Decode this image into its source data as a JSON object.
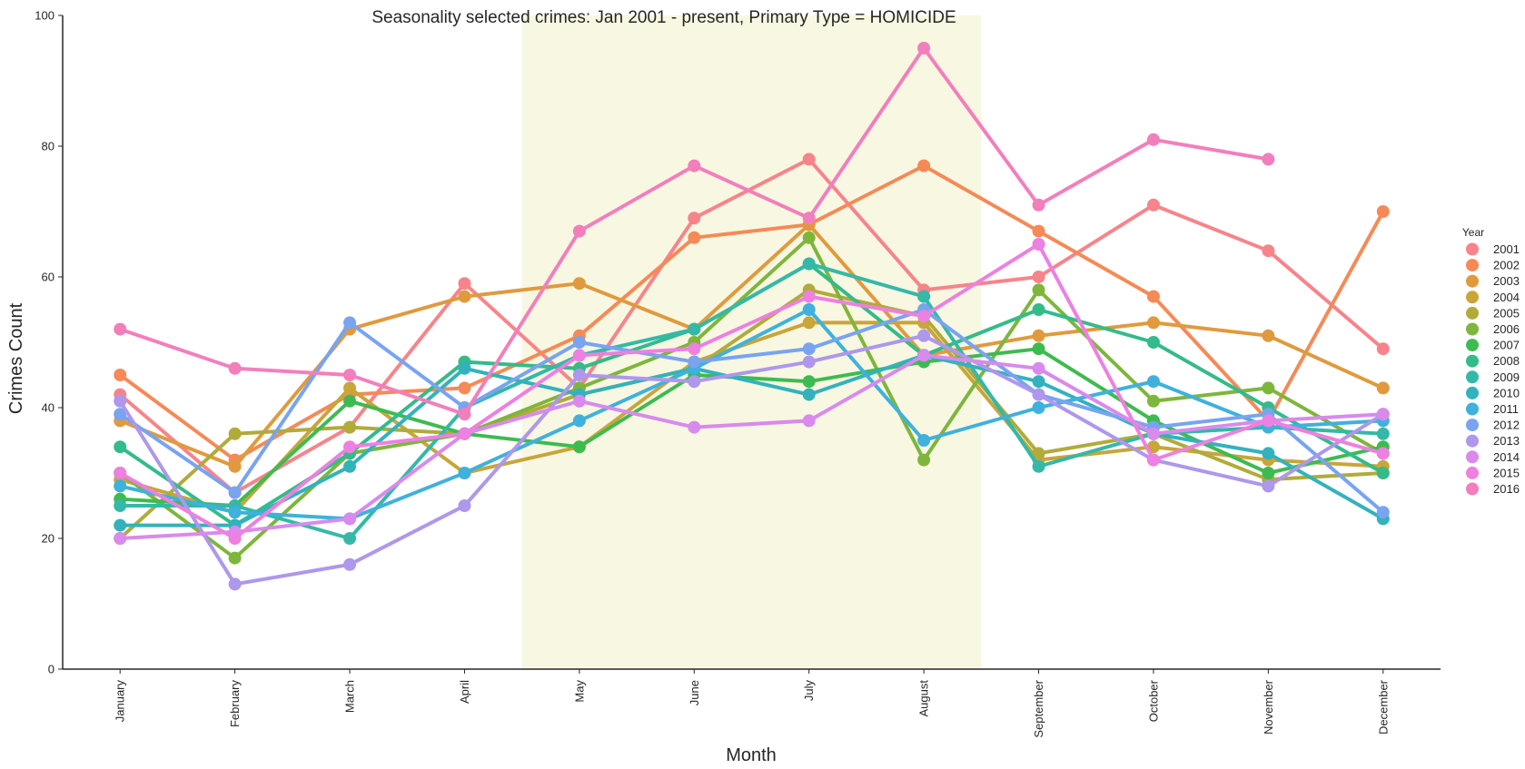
{
  "chart_data": {
    "type": "line",
    "title": "Seasonality selected crimes: Jan 2001 - present, Primary Type = HOMICIDE",
    "xlabel": "Month",
    "ylabel": "Crimes Count",
    "categories": [
      "January",
      "February",
      "March",
      "April",
      "May",
      "June",
      "July",
      "August",
      "September",
      "October",
      "November",
      "December"
    ],
    "ylim": [
      0,
      100
    ],
    "yticks": [
      0,
      20,
      40,
      60,
      80,
      100
    ],
    "grid": false,
    "highlight_span": {
      "from": "May",
      "to": "August",
      "color": "#f8f7e2"
    },
    "legend": {
      "title": "Year",
      "placement": "right"
    },
    "series": [
      {
        "name": "2001",
        "color": "#f7848a",
        "values": [
          42,
          27,
          37,
          59,
          43,
          69,
          78,
          58,
          60,
          71,
          64,
          49
        ]
      },
      {
        "name": "2002",
        "color": "#f58a56",
        "values": [
          45,
          32,
          42,
          43,
          51,
          66,
          68,
          77,
          67,
          57,
          38,
          70
        ]
      },
      {
        "name": "2003",
        "color": "#e09a3d",
        "values": [
          38,
          31,
          52,
          57,
          59,
          52,
          68,
          48,
          51,
          53,
          51,
          43
        ]
      },
      {
        "name": "2004",
        "color": "#c9a53a",
        "values": [
          29,
          24,
          43,
          30,
          34,
          47,
          53,
          53,
          32,
          34,
          32,
          31
        ]
      },
      {
        "name": "2005",
        "color": "#b1ab3a",
        "values": [
          20,
          36,
          37,
          36,
          42,
          46,
          58,
          54,
          33,
          36,
          29,
          30
        ]
      },
      {
        "name": "2006",
        "color": "#7eb63c",
        "values": [
          30,
          17,
          33,
          36,
          43,
          50,
          66,
          32,
          58,
          41,
          43,
          33
        ]
      },
      {
        "name": "2007",
        "color": "#3ebb50",
        "values": [
          26,
          25,
          41,
          36,
          34,
          45,
          44,
          47,
          49,
          38,
          30,
          34
        ]
      },
      {
        "name": "2008",
        "color": "#34bb8a",
        "values": [
          34,
          22,
          33,
          47,
          46,
          52,
          62,
          48,
          55,
          50,
          40,
          30
        ]
      },
      {
        "name": "2009",
        "color": "#35b8a8",
        "values": [
          25,
          25,
          20,
          40,
          48,
          52,
          62,
          57,
          31,
          36,
          37,
          36
        ]
      },
      {
        "name": "2010",
        "color": "#33b2bd",
        "values": [
          22,
          22,
          31,
          46,
          42,
          46,
          42,
          48,
          44,
          36,
          33,
          23
        ]
      },
      {
        "name": "2011",
        "color": "#3fb1dd",
        "values": [
          28,
          24,
          23,
          30,
          38,
          46,
          55,
          35,
          40,
          44,
          37,
          38
        ]
      },
      {
        "name": "2012",
        "color": "#78a4f0",
        "values": [
          39,
          27,
          53,
          40,
          50,
          47,
          49,
          55,
          42,
          37,
          39,
          24
        ]
      },
      {
        "name": "2013",
        "color": "#ae97ec",
        "values": [
          41,
          13,
          16,
          25,
          45,
          44,
          47,
          51,
          42,
          32,
          28,
          39
        ]
      },
      {
        "name": "2014",
        "color": "#d88aed",
        "values": [
          20,
          21,
          23,
          36,
          41,
          37,
          38,
          48,
          46,
          36,
          38,
          39
        ]
      },
      {
        "name": "2015",
        "color": "#ed80e0",
        "values": [
          30,
          20,
          34,
          36,
          48,
          49,
          57,
          54,
          65,
          32,
          38,
          33
        ]
      },
      {
        "name": "2016",
        "color": "#f27fbc",
        "values": [
          52,
          46,
          45,
          39,
          67,
          77,
          69,
          95,
          71,
          81,
          78,
          null
        ]
      }
    ]
  }
}
